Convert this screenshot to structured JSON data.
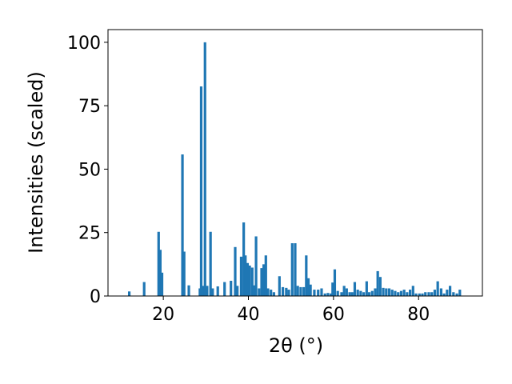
{
  "chart_data": {
    "type": "bar",
    "xlabel": "2θ (°)",
    "ylabel": "Intensities (scaled)",
    "xlim": [
      7,
      95
    ],
    "ylim": [
      0,
      105
    ],
    "xticks": [
      20,
      40,
      60,
      80
    ],
    "yticks": [
      0,
      25,
      50,
      75,
      100
    ],
    "bar_width": 0.6,
    "bar_color": "#1f77b4",
    "grid": false,
    "x": [
      12.0,
      15.5,
      18.9,
      19.3,
      19.7,
      24.5,
      24.9,
      26.0,
      28.6,
      28.9,
      29.4,
      29.8,
      30.3,
      31.1,
      31.6,
      32.8,
      34.4,
      35.9,
      36.9,
      37.4,
      38.3,
      38.9,
      39.3,
      39.8,
      40.3,
      40.9,
      41.3,
      41.8,
      42.5,
      43.1,
      43.6,
      44.1,
      44.6,
      45.3,
      46.0,
      47.3,
      48.1,
      48.9,
      49.5,
      50.3,
      51.0,
      51.6,
      52.3,
      53.0,
      53.6,
      54.1,
      54.6,
      55.5,
      56.4,
      57.2,
      58.0,
      58.7,
      59.4,
      59.8,
      60.3,
      61.0,
      61.9,
      62.5,
      63.1,
      63.8,
      64.4,
      65.0,
      65.7,
      66.4,
      67.1,
      67.8,
      68.4,
      69.1,
      69.8,
      70.4,
      71.0,
      71.7,
      72.4,
      73.1,
      73.8,
      74.5,
      75.2,
      75.9,
      76.6,
      77.3,
      78.0,
      78.7,
      79.4,
      80.2,
      80.9,
      81.6,
      82.4,
      83.1,
      83.8,
      84.5,
      85.3,
      86.0,
      86.7,
      87.4,
      88.2,
      89.0,
      89.7
    ],
    "values": [
      1.8,
      5.5,
      25.3,
      18.2,
      9.2,
      55.8,
      17.5,
      4.2,
      3.0,
      82.6,
      4.0,
      100.0,
      4.0,
      25.3,
      3.0,
      3.8,
      5.5,
      6.0,
      19.3,
      4.0,
      15.5,
      29.0,
      16.0,
      13.0,
      12.0,
      11.2,
      4.2,
      23.5,
      3.0,
      11.0,
      12.5,
      16.0,
      3.0,
      2.5,
      1.5,
      7.8,
      3.5,
      3.2,
      2.5,
      20.8,
      20.8,
      4.0,
      3.5,
      3.5,
      16.0,
      7.0,
      4.5,
      2.5,
      2.5,
      3.0,
      1.0,
      1.2,
      1.0,
      5.3,
      10.5,
      2.0,
      1.5,
      4.0,
      3.0,
      1.5,
      1.5,
      5.5,
      2.5,
      2.0,
      1.5,
      5.8,
      1.5,
      2.0,
      3.0,
      9.8,
      7.5,
      3.2,
      3.0,
      3.0,
      2.5,
      2.0,
      1.5,
      2.0,
      2.5,
      1.5,
      2.5,
      4.0,
      1.0,
      1.0,
      1.0,
      1.5,
      1.5,
      1.5,
      2.5,
      5.8,
      3.0,
      1.0,
      2.5,
      4.0,
      1.5,
      1.0,
      2.5
    ]
  }
}
